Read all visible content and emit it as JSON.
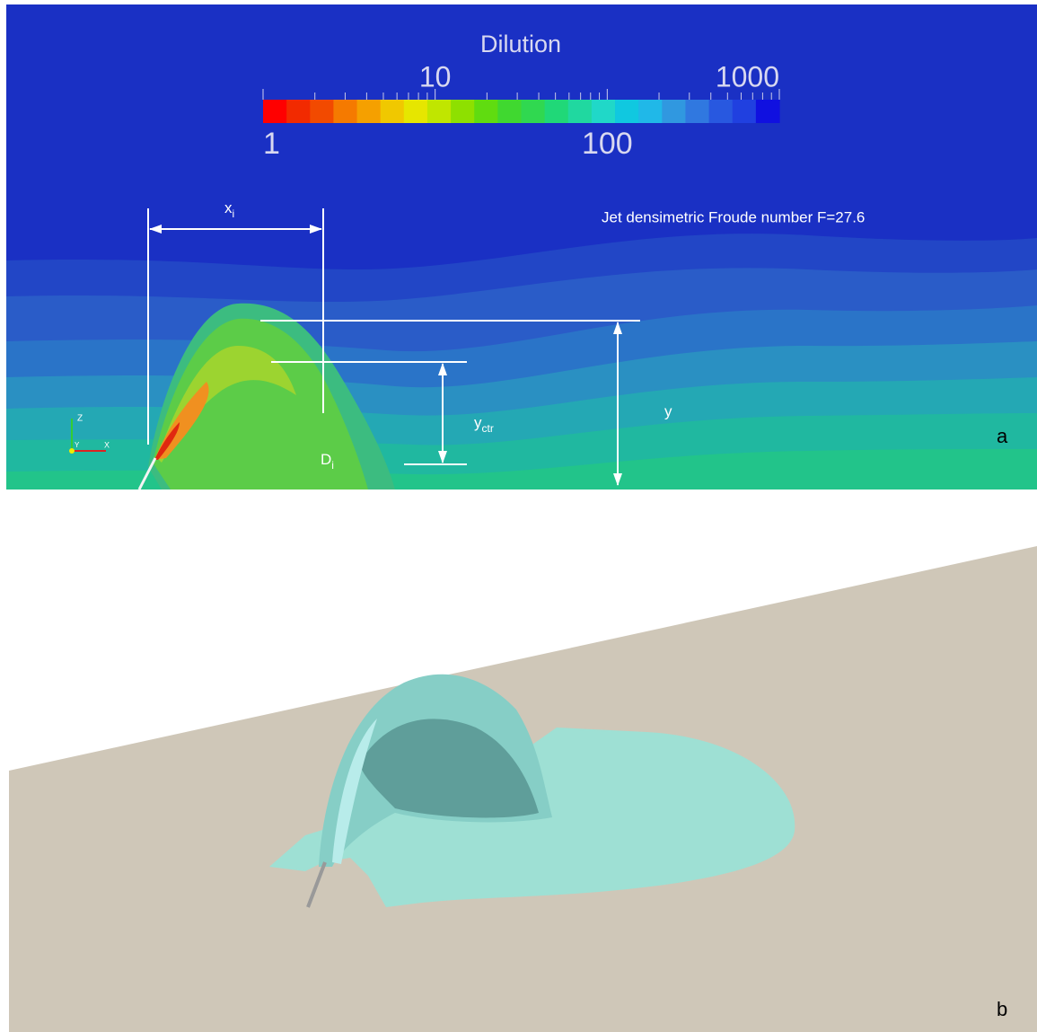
{
  "panel_a": {
    "label": "a",
    "colorbar": {
      "title": "Dilution",
      "scale": "log",
      "range": [
        1,
        1000
      ],
      "ticks": [
        1,
        10,
        100,
        1000
      ],
      "colors": [
        "#ff0000",
        "#f22a00",
        "#f24a00",
        "#f57a00",
        "#f5a000",
        "#f0c800",
        "#e6e600",
        "#c0e600",
        "#8ee000",
        "#60dc10",
        "#40d830",
        "#30d850",
        "#20d878",
        "#20d8a0",
        "#20d8c8",
        "#10c8e0",
        "#20b8e8",
        "#3098e0",
        "#3078e0",
        "#2858e0",
        "#2040e0",
        "#1010e0"
      ]
    },
    "annotation": "Jet densimetric Froude number F=27.6",
    "x_i": {
      "base": "x",
      "sub": "i"
    },
    "y_ctr": {
      "base": "y",
      "sub": "ctr"
    },
    "y": "y",
    "d_i": {
      "base": "D",
      "sub": "i"
    },
    "axes": [
      "Z",
      "Y",
      "X"
    ]
  },
  "panel_b": {
    "label": "b"
  }
}
